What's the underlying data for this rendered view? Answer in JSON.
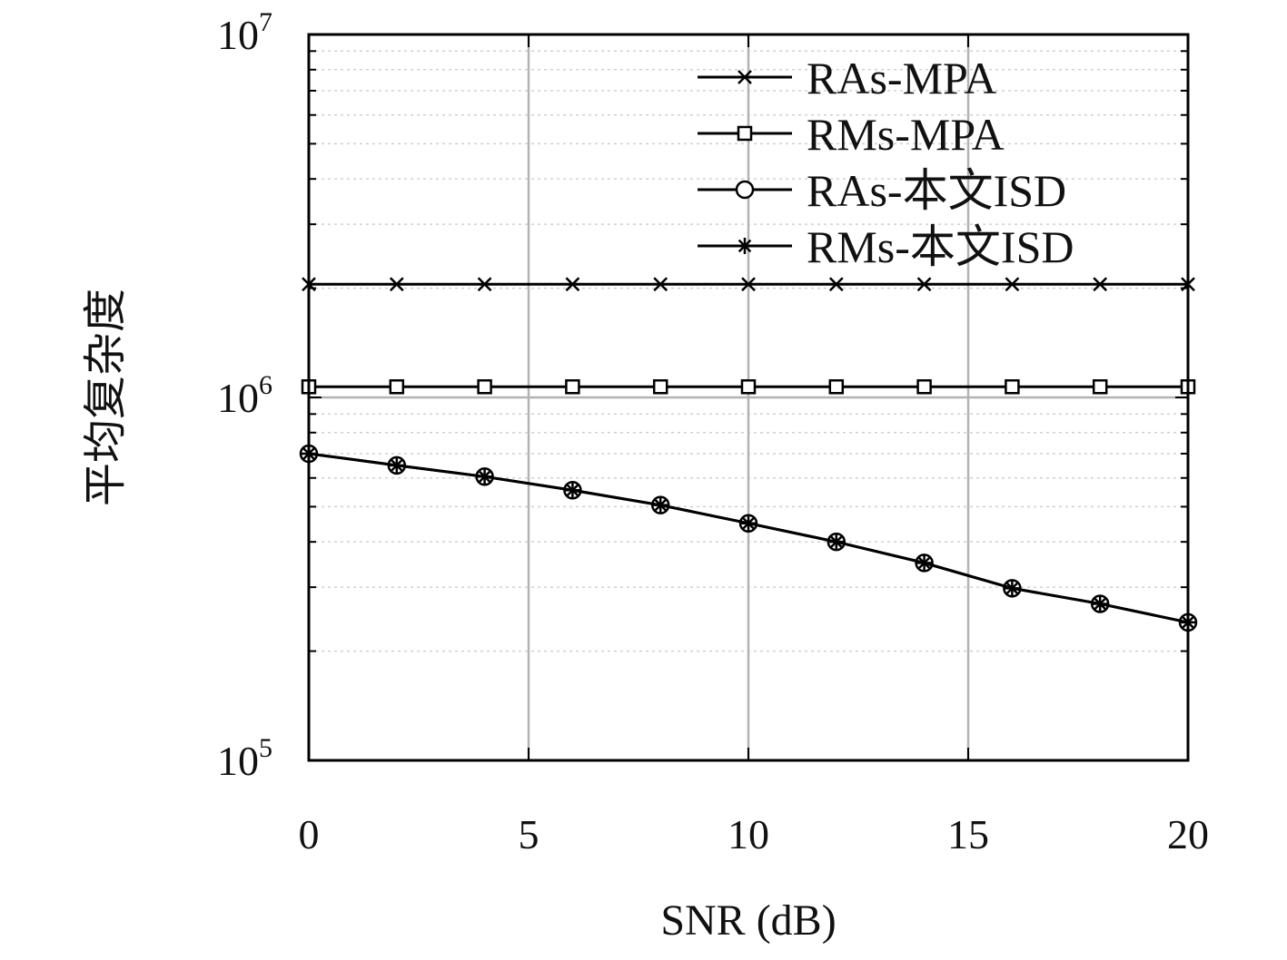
{
  "chart_data": {
    "type": "line",
    "title": "",
    "xlabel": "SNR (dB)",
    "ylabel": "平均复杂度",
    "x": [
      0,
      2,
      4,
      6,
      8,
      10,
      12,
      14,
      16,
      18,
      20
    ],
    "xlim": [
      0,
      20
    ],
    "xticks": [
      0,
      5,
      10,
      15,
      20
    ],
    "xtick_labels": [
      "0",
      "5",
      "10",
      "15",
      "20"
    ],
    "yscale": "log",
    "ylim": [
      100000,
      10000000
    ],
    "yticks": [
      {
        "base": "10",
        "exp": "5",
        "value": 100000
      },
      {
        "base": "10",
        "exp": "6",
        "value": 1000000
      },
      {
        "base": "10",
        "exp": "7",
        "value": 10000000
      }
    ],
    "grid": true,
    "legend_position": "top-right",
    "series": [
      {
        "name": "RAs-MPA",
        "marker": "x",
        "values": [
          2050000,
          2050000,
          2050000,
          2050000,
          2050000,
          2050000,
          2050000,
          2050000,
          2050000,
          2050000,
          2050000
        ]
      },
      {
        "name": "RMs-MPA",
        "marker": "square",
        "values": [
          1070000,
          1070000,
          1070000,
          1070000,
          1070000,
          1070000,
          1070000,
          1070000,
          1070000,
          1070000,
          1070000
        ]
      },
      {
        "name": "RAs-本文ISD",
        "marker": "circle",
        "values": [
          700000,
          650000,
          605000,
          555000,
          505000,
          450000,
          400000,
          350000,
          298000,
          270000,
          240000
        ]
      },
      {
        "name": "RMs-本文ISD",
        "marker": "asterisk",
        "values": [
          700000,
          650000,
          605000,
          555000,
          505000,
          450000,
          400000,
          350000,
          298000,
          270000,
          240000
        ]
      }
    ],
    "colors": {
      "line": "#000000",
      "grid_major": "#b3b3b3",
      "grid_minor": "#d0d0d0"
    }
  }
}
